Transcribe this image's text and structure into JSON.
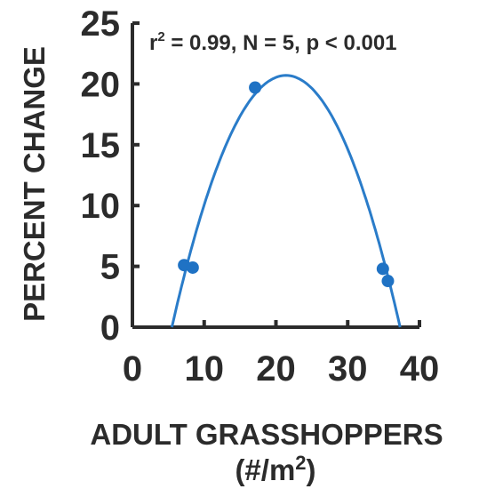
{
  "chart_data": {
    "type": "scatter",
    "xlabel": "ADULT GRASSHOPPERS",
    "xlabel_units_prefix": "(#/m",
    "xlabel_units_sup": "2",
    "xlabel_units_suffix": ")",
    "ylabel": "PERCENT CHANGE",
    "xlim": [
      0,
      40
    ],
    "ylim": [
      0,
      25
    ],
    "xticks": [
      "0",
      "10",
      "20",
      "30",
      "40"
    ],
    "yticks": [
      "0",
      "5",
      "10",
      "15",
      "20",
      "25"
    ],
    "annotation": {
      "r_symbol": "r",
      "r_sup": "2",
      "rest": " = 0.99, N = 5, p < 0.001"
    },
    "points": [
      {
        "x": 7.2,
        "y": 5.1
      },
      {
        "x": 8.4,
        "y": 4.9
      },
      {
        "x": 17.1,
        "y": 19.7
      },
      {
        "x": 34.9,
        "y": 4.8
      },
      {
        "x": 35.6,
        "y": 3.8
      }
    ],
    "fit": {
      "type": "quadratic",
      "vertex_x": 21.4,
      "vertex_y": 20.7,
      "x_range": [
        5.5,
        37.3
      ]
    },
    "colors": {
      "marker": "#1f72c4",
      "line": "#2a7cc9",
      "axis": "#2b2b2b",
      "text": "#2b2b2b"
    },
    "grid": false
  }
}
